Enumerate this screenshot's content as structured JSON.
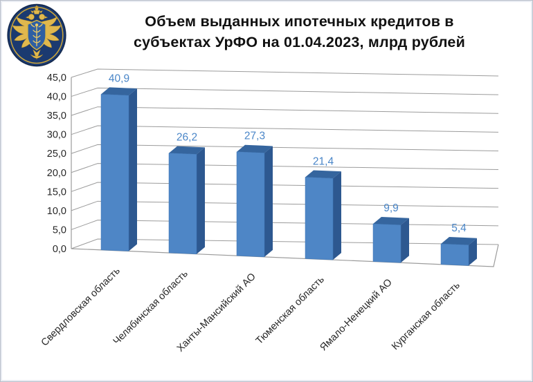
{
  "page": {
    "background": "#ffffff",
    "border_color": "#b9bfca"
  },
  "header": {
    "logo_icon": "federal-treasury-emblem",
    "title_lines": [
      "Объем выданных ипотечных кредитов в",
      "субъектах УрФО на 01.04.2023, млрд рублей"
    ]
  },
  "chart_data": {
    "type": "bar",
    "style": "3d-column",
    "title": "Объем выданных ипотечных кредитов в субъектах УрФО на 01.04.2023, млрд рублей",
    "xlabel": "",
    "ylabel": "",
    "categories": [
      "Свердловская область",
      "Челябинская область",
      "Ханты-Мансийский АО",
      "Тюменская область",
      "Ямало-Ненецкий АО",
      "Курганская область"
    ],
    "values": [
      40.9,
      26.2,
      27.3,
      21.4,
      9.9,
      5.4
    ],
    "value_labels": [
      "40,9",
      "26,2",
      "27,3",
      "21,4",
      "9,9",
      "5,4"
    ],
    "y_ticks": [
      0,
      5,
      10,
      15,
      20,
      25,
      30,
      35,
      40,
      45
    ],
    "y_tick_labels": [
      "0,0",
      "5,0",
      "10,0",
      "15,0",
      "20,0",
      "25,0",
      "30,0",
      "35,0",
      "40,0",
      "45,0"
    ],
    "ylim": [
      0,
      45
    ],
    "grid": true,
    "legend": false,
    "colors": {
      "bar_front": "#4e86c6",
      "bar_side": "#2d5890",
      "bar_top": "#35659e",
      "value_label": "#4a86c8",
      "gridline": "#9b9b9b",
      "tick_text": "#262626"
    }
  }
}
